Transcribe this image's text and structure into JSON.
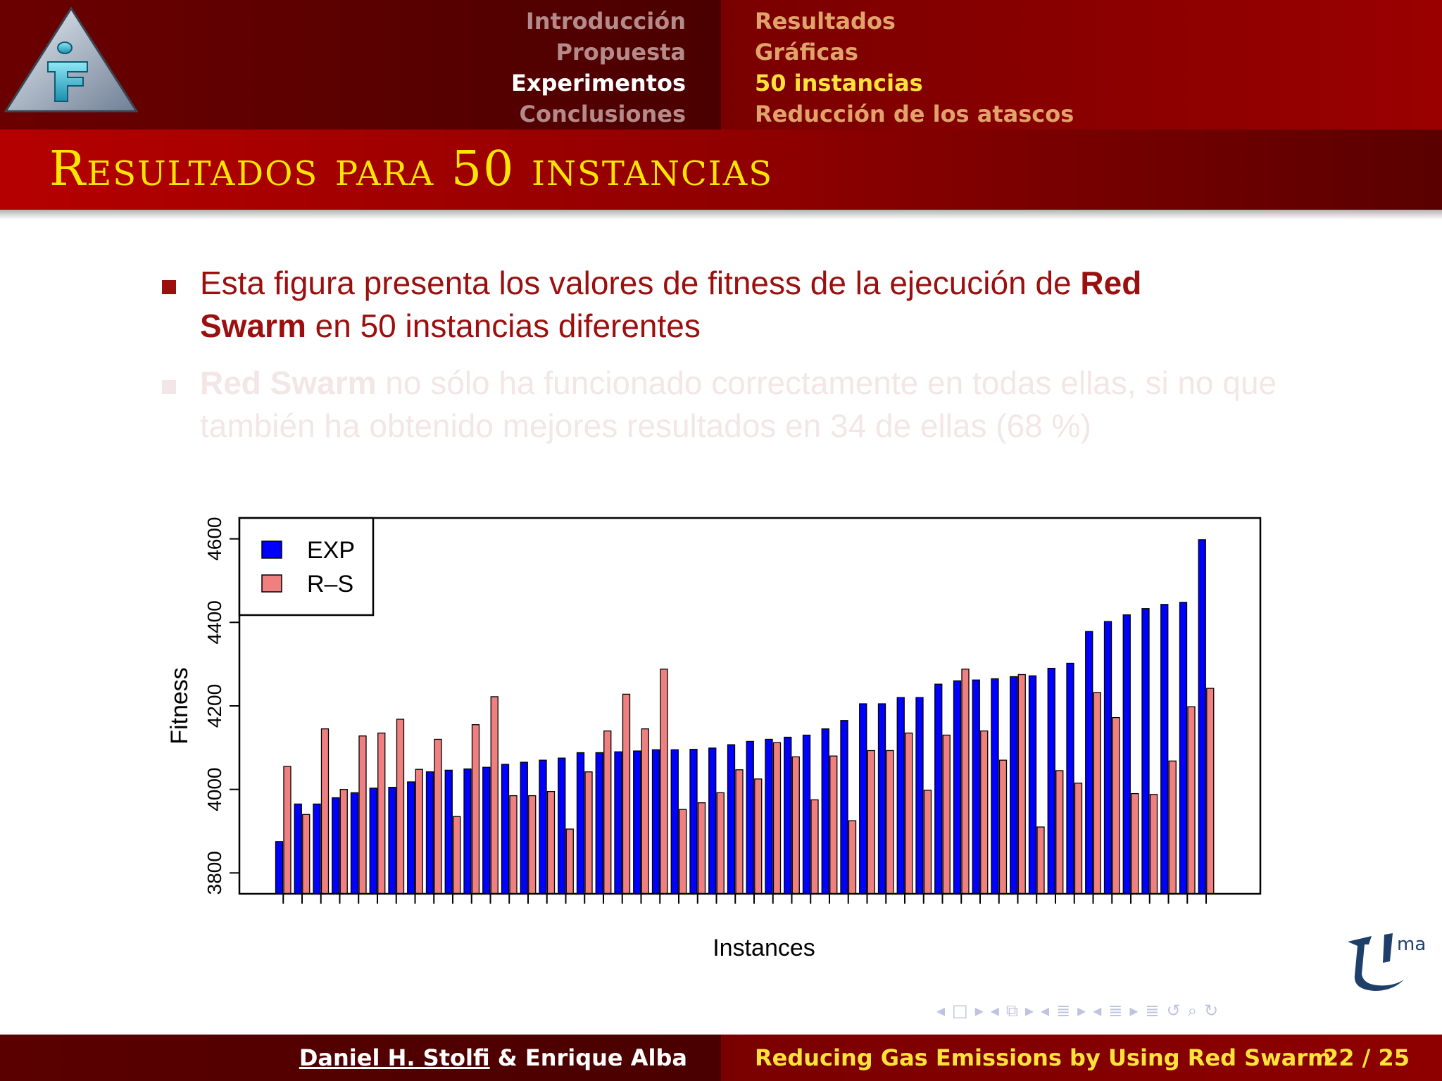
{
  "header": {
    "sections": [
      "Introducción",
      "Propuesta",
      "Experimentos",
      "Conclusiones"
    ],
    "active_section": 2,
    "subsections": [
      "Resultados",
      "Gráficas",
      "50 instancias",
      "Reducción de los atascos"
    ],
    "active_subsection": 2
  },
  "slide_title": "Resultados para 50 instancias",
  "bullets": [
    {
      "pre": "Esta figura presenta los valores de fitness de la ejecución de ",
      "bold1": "Red",
      "bold2": "Swarm",
      "post": " en 50 instancias diferentes"
    },
    {
      "bold": "Red Swarm",
      "text": " no sólo ha funcionado correctamente en todas ellas, si no que también ha obtenido mejores resultados en 34 de ellas (68 %)"
    }
  ],
  "chart_data": {
    "type": "bar",
    "xlabel": "Instances",
    "ylabel": "Fitness",
    "ylim": [
      3750,
      4650
    ],
    "yticks": [
      3800,
      4000,
      4200,
      4400,
      4600
    ],
    "legend_position": "top-left",
    "series": [
      {
        "name": "EXP",
        "color": "#0000ff",
        "values": [
          3875,
          3965,
          3965,
          3980,
          3992,
          4003,
          4005,
          4018,
          4042,
          4046,
          4049,
          4053,
          4060,
          4065,
          4070,
          4075,
          4088,
          4088,
          4090,
          4092,
          4095,
          4095,
          4096,
          4099,
          4107,
          4115,
          4120,
          4125,
          4130,
          4145,
          4165,
          4205,
          4205,
          4220,
          4220,
          4252,
          4260,
          4262,
          4265,
          4270,
          4272,
          4290,
          4302,
          4378,
          4402,
          4418,
          4433,
          4443,
          4448,
          4598
        ]
      },
      {
        "name": "R–S",
        "color": "#f08080",
        "values": [
          4055,
          3940,
          4145,
          4000,
          4128,
          4135,
          4168,
          4048,
          4120,
          3935,
          4155,
          4222,
          3985,
          3985,
          3995,
          3905,
          4042,
          4140,
          4228,
          4145,
          4288,
          3952,
          3968,
          3992,
          4047,
          4025,
          4112,
          4078,
          3975,
          4080,
          3925,
          4093,
          4093,
          4135,
          3998,
          4130,
          4288,
          4140,
          4070,
          4275,
          3910,
          4045,
          4015,
          4232,
          4172,
          3990,
          3988,
          4068,
          4198,
          4242
        ]
      }
    ]
  },
  "footer": {
    "author1": "Daniel H. Stolfi",
    "author_rest": " & Enrique Alba",
    "talk_title": "Reducing Gas Emissions by Using Red Swarm",
    "page": "22 / 25"
  },
  "nav_symbols": [
    "◂",
    "□",
    "▸",
    "◂",
    "⧉",
    "▸",
    "◂",
    "≣",
    "▸",
    "◂",
    "≣",
    "▸",
    "≣",
    "↺",
    "⌕",
    "↻"
  ],
  "uma_logo_text": "ma"
}
